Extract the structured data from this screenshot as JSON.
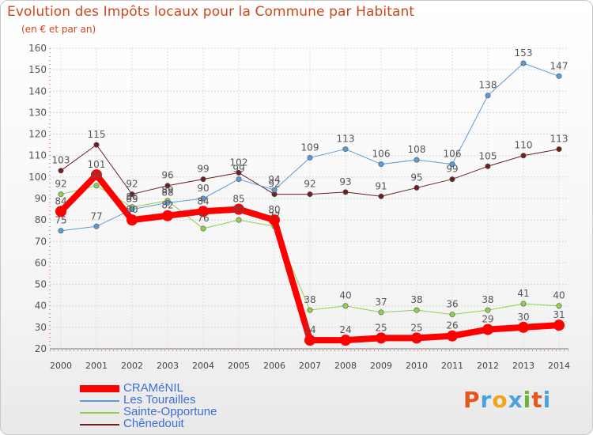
{
  "title": "Evolution des Impôts locaux pour la Commune par Habitant",
  "subtitle": "(en € et par an)",
  "brand": {
    "letters": [
      "P",
      "r",
      "o",
      "x",
      "i",
      "t",
      "i"
    ],
    "colors": [
      "#e8541b",
      "#4aa3df",
      "#f2a41c",
      "#4aa3df",
      "#6bb536",
      "#e8541b",
      "#4aa3df"
    ]
  },
  "chart_data": {
    "type": "line",
    "x": [
      "2000",
      "2001",
      "2002",
      "2003",
      "2004",
      "2005",
      "2006",
      "2007",
      "2008",
      "2009",
      "2010",
      "2011",
      "2012",
      "2013",
      "2014"
    ],
    "ylim": [
      20,
      160
    ],
    "yticks": [
      20,
      30,
      40,
      50,
      60,
      70,
      80,
      90,
      100,
      110,
      120,
      130,
      140,
      150,
      160
    ],
    "grid": true,
    "legend_position": "bottom-left",
    "series": [
      {
        "name": "Chênedouit",
        "color": "#6e1e22",
        "width": 1,
        "values": [
          103,
          115,
          92,
          96,
          99,
          102,
          92,
          92,
          93,
          91,
          95,
          99,
          105,
          110,
          113
        ]
      },
      {
        "name": "Sainte-Opportune",
        "color": "#8fd14f",
        "width": 1,
        "values": [
          92,
          96,
          86,
          89,
          76,
          80,
          77,
          38,
          40,
          37,
          38,
          36,
          38,
          41,
          40
        ]
      },
      {
        "name": "Les Tourailles",
        "color": "#5b9bd5",
        "width": 1,
        "values": [
          75,
          77,
          85,
          88,
          90,
          99,
          94,
          109,
          113,
          106,
          108,
          106,
          138,
          153,
          147
        ]
      },
      {
        "name": "CRAMéNIL",
        "color": "#ff0000",
        "width": 8,
        "values": [
          84,
          101,
          80,
          82,
          84,
          85,
          80,
          24,
          24,
          25,
          25,
          26,
          29,
          30,
          31
        ]
      }
    ],
    "legend": [
      "CRAMéNIL",
      "Les Tourailles",
      "Sainte-Opportune",
      "Chênedouit"
    ]
  }
}
